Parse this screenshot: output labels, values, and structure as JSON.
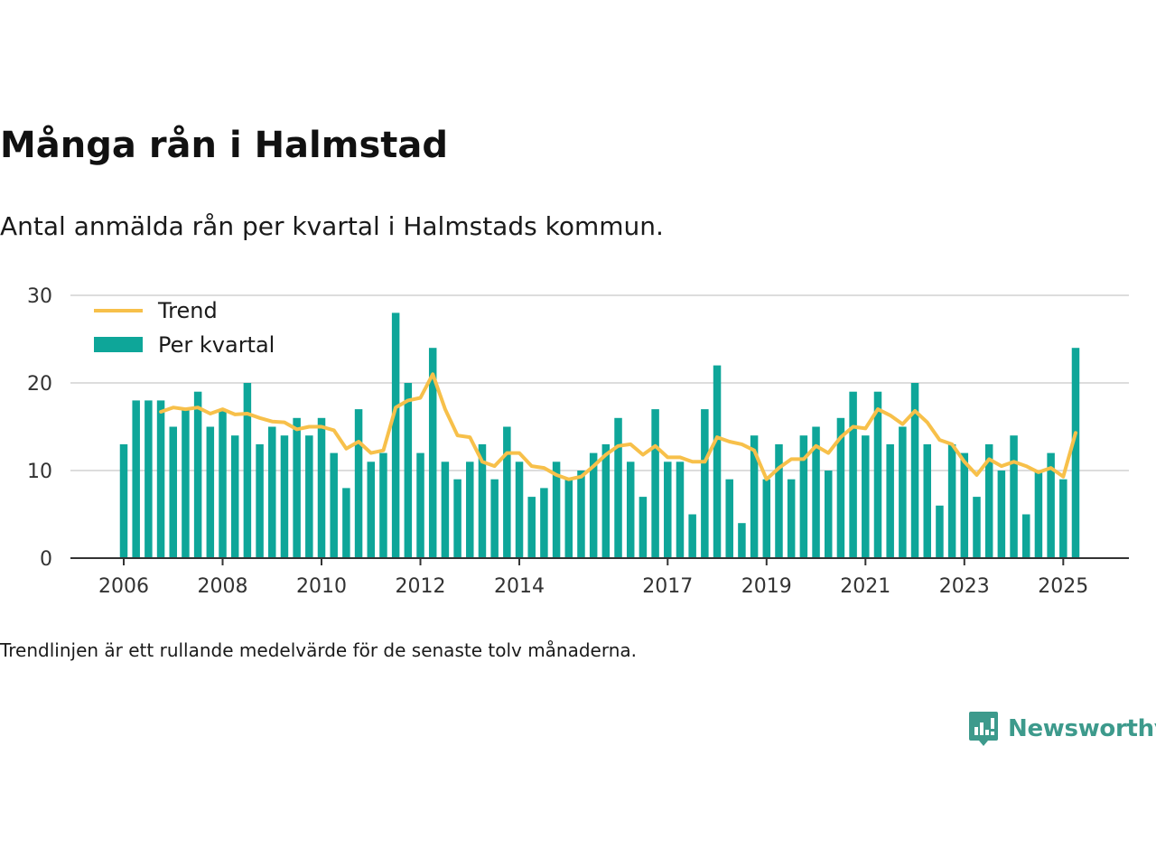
{
  "title": "Många rån i Halmstad",
  "subtitle": "Antal anmälda rån per kvartal i Halmstads kommun.",
  "note": "Trendlinjen är ett rullande medelvärde för de senaste tolv månaderna.",
  "brand": {
    "name": "Newsworthy",
    "color": "#3d9a8c"
  },
  "chart_data": {
    "type": "bar",
    "x_start_year": 2006,
    "bar_color": "#0ea699",
    "trend_color": "#f7c04a",
    "legend_position": "top-left",
    "grid": true,
    "ylim": [
      0,
      30
    ],
    "yticks": [
      0,
      10,
      20,
      30
    ],
    "xticks": [
      "2006",
      "2008",
      "2010",
      "2012",
      "2014",
      "2017",
      "2019",
      "2021",
      "2023",
      "2025"
    ],
    "series": [
      {
        "name": "Per kvartal",
        "type": "bar",
        "values": [
          13,
          18,
          18,
          18,
          15,
          17,
          19,
          15,
          17,
          14,
          20,
          13,
          15,
          14,
          16,
          14,
          16,
          12,
          8,
          17,
          11,
          12,
          28,
          20,
          12,
          24,
          11,
          9,
          11,
          13,
          9,
          15,
          11,
          7,
          8,
          11,
          9,
          10,
          12,
          13,
          16,
          11,
          7,
          17,
          11,
          11,
          5,
          17,
          22,
          9,
          4,
          14,
          9,
          13,
          9,
          14,
          15,
          10,
          16,
          19,
          14,
          19,
          13,
          15,
          20,
          13,
          6,
          13,
          12,
          7,
          13,
          10,
          14,
          5,
          10,
          12,
          9,
          24
        ]
      },
      {
        "name": "Trend",
        "type": "line",
        "values": [
          null,
          null,
          null,
          16.7,
          17.2,
          17.0,
          17.2,
          16.5,
          17.0,
          16.4,
          16.5,
          16.0,
          15.6,
          15.5,
          14.7,
          15.0,
          15.0,
          14.6,
          12.5,
          13.3,
          12.0,
          12.3,
          17.2,
          18.0,
          18.3,
          21.0,
          17.0,
          14.0,
          13.8,
          11.0,
          10.5,
          12.0,
          12.0,
          10.5,
          10.3,
          9.5,
          9.0,
          9.3,
          10.5,
          11.8,
          12.8,
          13.0,
          11.8,
          12.8,
          11.5,
          11.5,
          11.0,
          11.0,
          13.8,
          13.3,
          13.0,
          12.3,
          9.0,
          10.3,
          11.3,
          11.3,
          12.8,
          12.0,
          13.8,
          15.0,
          14.8,
          17.0,
          16.3,
          15.3,
          16.8,
          15.5,
          13.5,
          13.0,
          11.0,
          9.5,
          11.3,
          10.5,
          11.0,
          10.5,
          9.8,
          10.3,
          9.3,
          14.3
        ]
      }
    ]
  }
}
